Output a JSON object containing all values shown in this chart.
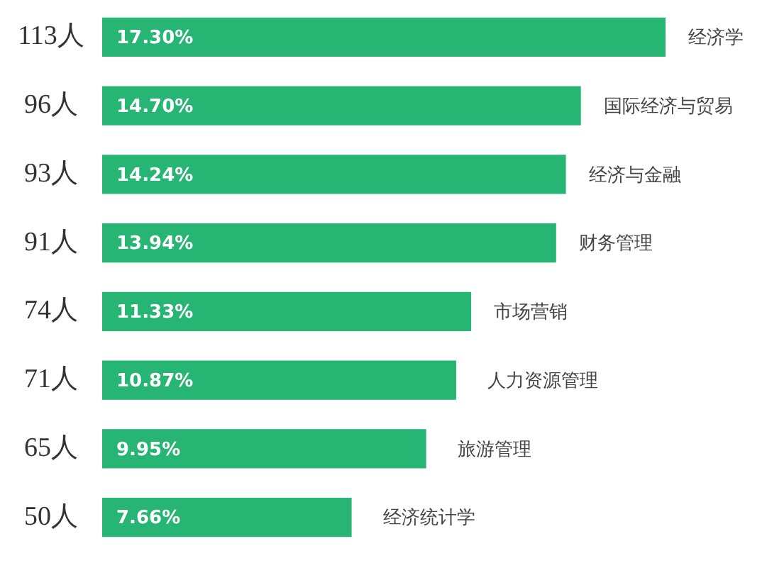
{
  "chart_data": {
    "type": "bar",
    "orientation": "horizontal",
    "categories": [
      "经济学",
      "国际经济与贸易",
      "经济与金融",
      "财务管理",
      "市场营销",
      "人力资源管理",
      "旅游管理",
      "经济统计学"
    ],
    "values": [
      17.3,
      14.7,
      14.24,
      13.94,
      11.33,
      10.87,
      9.95,
      7.66
    ],
    "value_labels": [
      "17.30%",
      "14.70%",
      "14.24%",
      "13.94%",
      "11.33%",
      "10.87%",
      "9.95%",
      "7.66%"
    ],
    "color": "#27b574",
    "annotations": [
      "113人",
      "96人",
      "93人",
      "91人",
      "74人",
      "71人",
      "65人",
      "50人"
    ],
    "legend": false
  }
}
